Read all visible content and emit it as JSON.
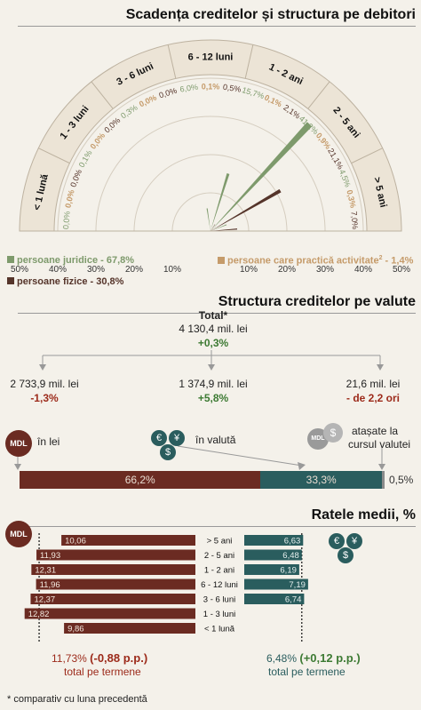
{
  "section1": {
    "title": "Scadența creditelor și structura pe debitori",
    "legend": [
      {
        "name": "persoane juridice - 67,8%",
        "color": "#7e9a6c"
      },
      {
        "name": "persoane care practică activitate",
        "sup": "2",
        "suffix": " - 1,4%",
        "color": "#c59b6a"
      },
      {
        "name": "persoane fizice - 30,8%",
        "color": "#55342a"
      }
    ],
    "axis_ticks": [
      "50%",
      "40%",
      "30%",
      "20%",
      "10%",
      "10%",
      "20%",
      "30%",
      "40%",
      "50%"
    ]
  },
  "chart_data": [
    {
      "type": "polar-bar",
      "title": "Scadența creditelor și structura pe debitori",
      "categories": [
        "< 1 lună",
        "1 - 3 luni",
        "3 - 6 luni",
        "6 - 12 luni",
        "1 - 2 ani",
        "2 - 5 ani",
        "> 5 ani"
      ],
      "series": [
        {
          "name": "persoane juridice - 67,8%",
          "color": "#7e9a6c",
          "values": [
            0.0,
            0.1,
            0.3,
            6.0,
            15.7,
            41.2,
            4.5
          ],
          "labels": [
            "0,0%",
            "0,1%",
            "0,3%",
            "6,0%",
            "15,7%",
            "41,2%",
            "4,5%"
          ]
        },
        {
          "name": "persoane care practică activitate - 1,4%",
          "color": "#c59b6a",
          "values": [
            0.0,
            0.0,
            0.0,
            0.1,
            0.1,
            0.9,
            0.3
          ],
          "labels": [
            "0,0%",
            "0,0%",
            "0,0%",
            "0,1%",
            "0,1%",
            "0,9%",
            "0,3%"
          ]
        },
        {
          "name": "persoane fizice - 30,8%",
          "color": "#55342a",
          "values": [
            0.0,
            0.0,
            0.0,
            0.5,
            2.1,
            21.1,
            7.0
          ],
          "labels": [
            "0,0%",
            "0,0%",
            "0,0%",
            "0,5%",
            "2,1%",
            "21,1%",
            "7,0%"
          ]
        }
      ],
      "radial_range": [
        0,
        50
      ],
      "radial_ticks": [
        10,
        20,
        30,
        40,
        50
      ]
    },
    {
      "type": "bar",
      "title": "Structura creditelor pe valute",
      "categories": [
        "în lei",
        "în valută",
        "atașate la cursul valutei"
      ],
      "values": [
        66.2,
        33.3,
        0.5
      ],
      "labels": [
        "66,2%",
        "33,3%",
        "0,5%"
      ],
      "colors": [
        "#6b2b22",
        "#2a5d5e",
        "#8a8a8a"
      ]
    },
    {
      "type": "bar",
      "title": "Ratele medii, %",
      "categories": [
        "> 5 ani",
        "2 - 5 ani",
        "1 - 2 ani",
        "6 - 12 luni",
        "3 - 6 luni",
        "1 - 3 luni",
        "< 1 lună"
      ],
      "series": [
        {
          "name": "MDL",
          "color": "#6b2b22",
          "values": [
            10.06,
            11.93,
            12.31,
            11.96,
            12.37,
            12.82,
            9.86
          ],
          "labels": [
            "10,06",
            "11,93",
            "12,31",
            "11,96",
            "12,37",
            "12,82",
            "9,86"
          ]
        },
        {
          "name": "valută",
          "color": "#2a5d5e",
          "values": [
            6.63,
            6.48,
            6.19,
            7.19,
            6.74,
            null,
            null
          ],
          "labels": [
            "6,63",
            "6,48",
            "6,19",
            "7,19",
            "6,74",
            "",
            ""
          ]
        }
      ]
    }
  ],
  "section2": {
    "title": "Structura creditelor pe valute",
    "total_label": "Total*",
    "total_value": "4 130,4 mil. lei",
    "total_change": "+0,3%",
    "lei_value": "2 733,9 mil. lei",
    "lei_change": "-1,3%",
    "valuta_value": "1 374,9 mil. lei",
    "valuta_change": "+5,8%",
    "atasate_value": "21,6 mil. lei",
    "atasate_change": "- de 2,2 ori",
    "lei_label": "în lei",
    "valuta_label": "în valută",
    "atasate_label_1": "atașate la",
    "atasate_label_2": "cursul valutei",
    "mdl_badge": "MDL",
    "currency_symbols": [
      "€",
      "¥",
      "$"
    ]
  },
  "section3": {
    "title": "Ratele medii, %",
    "mdl_badge": "MDL",
    "lei_total": "11,73%",
    "lei_total_change": "(-0,88 p.p.)",
    "valuta_total": "6,48%",
    "valuta_total_change": "(+0,12 p.p.)",
    "total_label": "total pe termene",
    "currency_symbols": [
      "€",
      "¥",
      "$"
    ]
  },
  "footnote": "* comparativ cu luna precedentă"
}
